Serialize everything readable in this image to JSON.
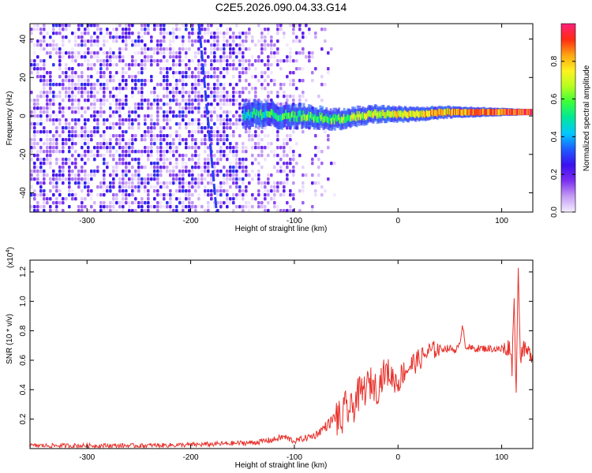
{
  "figure_title": "C2E5.2026.090.04.33.G14",
  "chart_data": [
    {
      "type": "heatmap",
      "name": "spectrogram",
      "xlabel": "Height of straight line (km)",
      "ylabel": "Frequency (Hz)",
      "xlim": [
        -355,
        130
      ],
      "ylim": [
        -50,
        48
      ],
      "xticks": [
        -300,
        -200,
        -100,
        0,
        100
      ],
      "xtick_labels": [
        "-300",
        "-200",
        "-100",
        "0",
        "100"
      ],
      "yticks": [
        -40,
        -20,
        0,
        20,
        40
      ],
      "ytick_labels": [
        "-40",
        "-20",
        "0",
        "20",
        "40"
      ],
      "colorbar": {
        "label": "Normalized spectral amplitude",
        "range": [
          0,
          1
        ],
        "ticks": [
          0,
          0.2,
          0.4,
          0.6,
          0.8
        ],
        "tick_labels": [
          "0.0",
          "0.2",
          "0.4",
          "0.6",
          "0.8"
        ],
        "colormap": [
          "#f4ecff",
          "#c59cf5",
          "#7c2ff0",
          "#3a10f0",
          "#1f5cff",
          "#00c8ff",
          "#00e79a",
          "#38ff3a",
          "#b6ff20",
          "#fff21f",
          "#ffa312",
          "#ff2b12",
          "#ff1f7c"
        ]
      },
      "features": {
        "noise_region_x": [
          -355,
          -105
        ],
        "diagonal_line": {
          "x": [
            -192,
            -175
          ],
          "y": [
            48,
            -50
          ]
        },
        "carrier": {
          "x": [
            -150,
            -100,
            -75,
            -60,
            -40,
            -20,
            0,
            20,
            50,
            80,
            110,
            130
          ],
          "y": [
            1,
            0,
            -1,
            -2,
            0,
            1,
            1,
            1,
            2,
            2,
            2,
            2
          ]
        }
      }
    },
    {
      "type": "line",
      "name": "snr",
      "xlabel": "Height of straight line (km)",
      "ylabel": "SNR (10 * v/v)",
      "scale_label": "(x10",
      "scale_exponent": "4",
      "scale_close": ")",
      "xlim": [
        -355,
        130
      ],
      "ylim": [
        0,
        1.28
      ],
      "xticks": [
        -300,
        -200,
        -100,
        0,
        100
      ],
      "xtick_labels": [
        "-300",
        "-200",
        "-100",
        "0",
        "100"
      ],
      "yticks": [
        0.2,
        0.4,
        0.6,
        0.8,
        1.0,
        1.2
      ],
      "ytick_labels": [
        "0.2",
        "0.4",
        "0.6",
        "0.8",
        "1.0",
        "1.2"
      ],
      "color": "#e8302a",
      "series": [
        {
          "name": "SNR",
          "x": [
            -355,
            -300,
            -250,
            -200,
            -180,
            -160,
            -140,
            -120,
            -110,
            -100,
            -90,
            -80,
            -75,
            -70,
            -65,
            -60,
            -55,
            -50,
            -45,
            -40,
            -35,
            -30,
            -25,
            -20,
            -15,
            -10,
            -5,
            0,
            5,
            10,
            15,
            20,
            25,
            30,
            40,
            50,
            55,
            60,
            62,
            65,
            70,
            80,
            90,
            100,
            105,
            108,
            110,
            112,
            114,
            116,
            118,
            120,
            125,
            130
          ],
          "y": [
            0.02,
            0.02,
            0.02,
            0.025,
            0.03,
            0.035,
            0.04,
            0.06,
            0.08,
            0.05,
            0.07,
            0.09,
            0.12,
            0.15,
            0.18,
            0.22,
            0.17,
            0.28,
            0.25,
            0.35,
            0.38,
            0.42,
            0.45,
            0.4,
            0.5,
            0.52,
            0.48,
            0.45,
            0.52,
            0.55,
            0.58,
            0.6,
            0.63,
            0.66,
            0.68,
            0.68,
            0.67,
            0.7,
            0.86,
            0.7,
            0.68,
            0.68,
            0.68,
            0.67,
            0.68,
            0.7,
            0.55,
            1.05,
            0.35,
            1.28,
            0.6,
            0.68,
            0.65,
            0.64
          ]
        }
      ]
    }
  ]
}
